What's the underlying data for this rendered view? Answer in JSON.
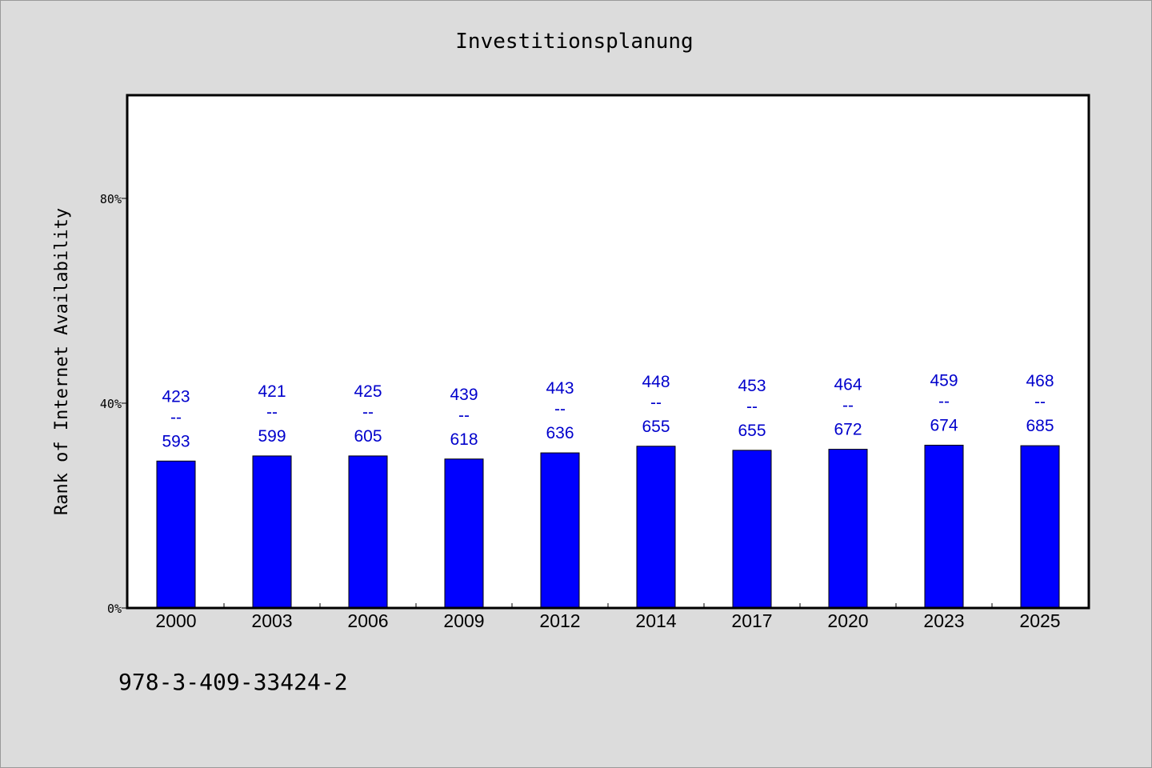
{
  "chart_data": {
    "type": "bar",
    "title": "Investitionsplanung",
    "ylabel": "Rank of Internet Availability",
    "xlabel": "",
    "categories": [
      "2000",
      "2003",
      "2006",
      "2009",
      "2012",
      "2014",
      "2017",
      "2020",
      "2023",
      "2025"
    ],
    "values": [
      0.287,
      0.297,
      0.297,
      0.291,
      0.303,
      0.316,
      0.308,
      0.31,
      0.318,
      0.317
    ],
    "ylim": [
      0,
      1.0
    ],
    "yticks": [
      0,
      0.4,
      0.8
    ],
    "ytick_labels": [
      "0%",
      "40%",
      "80%"
    ],
    "data_labels": [
      {
        "top": "423",
        "sep": "--",
        "bottom": "593"
      },
      {
        "top": "421",
        "sep": "--",
        "bottom": "599"
      },
      {
        "top": "425",
        "sep": "--",
        "bottom": "605"
      },
      {
        "top": "439",
        "sep": "--",
        "bottom": "618"
      },
      {
        "top": "443",
        "sep": "--",
        "bottom": "636"
      },
      {
        "top": "448",
        "sep": "--",
        "bottom": "655"
      },
      {
        "top": "453",
        "sep": "--",
        "bottom": "655"
      },
      {
        "top": "464",
        "sep": "--",
        "bottom": "672"
      },
      {
        "top": "459",
        "sep": "--",
        "bottom": "674"
      },
      {
        "top": "468",
        "sep": "--",
        "bottom": "685"
      }
    ],
    "grid": false,
    "legend": "none",
    "bar_color": "#0000ff",
    "label_color": "#0000cc"
  },
  "footer": {
    "isbn": "978-3-409-33424-2"
  }
}
